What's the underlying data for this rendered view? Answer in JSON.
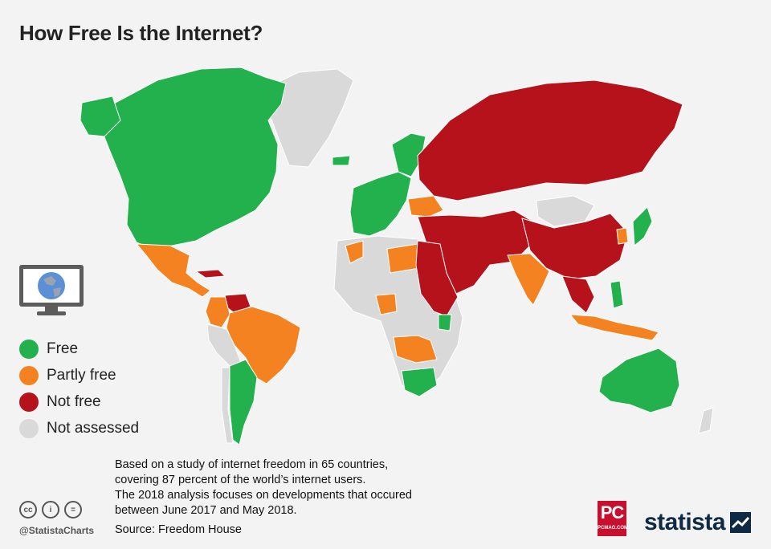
{
  "title": "How Free Is the Internet?",
  "legend": [
    {
      "label": "Free",
      "color": "#22b14c"
    },
    {
      "label": "Partly free",
      "color": "#f58220"
    },
    {
      "label": "Not free",
      "color": "#b5121b"
    },
    {
      "label": "Not assessed",
      "color": "#d9d9d9"
    }
  ],
  "note": [
    "Based on a study of internet freedom in 65 countries,",
    "covering 87 percent of the world’s internet users.",
    "The 2018 analysis focuses on developments that occured",
    "between June 2017 and May 2018."
  ],
  "source": "Source: Freedom House",
  "handle": "@StatistaCharts",
  "cc_icons": [
    "cc",
    "i",
    "="
  ],
  "partner_logo": {
    "main": "PC",
    "sub": "PCMAG.COM"
  },
  "brand": "statista",
  "map_regions": [
    {
      "name": "North America (Canada, USA)",
      "status": "Free"
    },
    {
      "name": "Greenland",
      "status": "Not assessed"
    },
    {
      "name": "Mexico & Central America",
      "status": "Partly free"
    },
    {
      "name": "Cuba",
      "status": "Not free"
    },
    {
      "name": "Venezuela",
      "status": "Not free"
    },
    {
      "name": "Colombia, Ecuador, Brazil",
      "status": "Partly free"
    },
    {
      "name": "Argentina",
      "status": "Free"
    },
    {
      "name": "Western Europe",
      "status": "Free"
    },
    {
      "name": "Ukraine, Hungary, Serbia",
      "status": "Partly free"
    },
    {
      "name": "Russia, Belarus",
      "status": "Not free"
    },
    {
      "name": "Middle East (Saudi Arabia, Iran, Syria)",
      "status": "Not free"
    },
    {
      "name": "Central Asia",
      "status": "Not free"
    },
    {
      "name": "China",
      "status": "Not free"
    },
    {
      "name": "Mongolia",
      "status": "Not assessed"
    },
    {
      "name": "India",
      "status": "Partly free"
    },
    {
      "name": "Japan",
      "status": "Free"
    },
    {
      "name": "South Korea",
      "status": "Partly free"
    },
    {
      "name": "Southeast Asia (Indonesia, Malaysia)",
      "status": "Partly free"
    },
    {
      "name": "Australia",
      "status": "Free"
    },
    {
      "name": "Egypt, Sudan, Ethiopia",
      "status": "Not free"
    },
    {
      "name": "Morocco, Libya, Nigeria, Angola",
      "status": "Partly free"
    },
    {
      "name": "Kenya, South Africa",
      "status": "Free"
    },
    {
      "name": "Rest of Africa",
      "status": "Not assessed"
    }
  ]
}
